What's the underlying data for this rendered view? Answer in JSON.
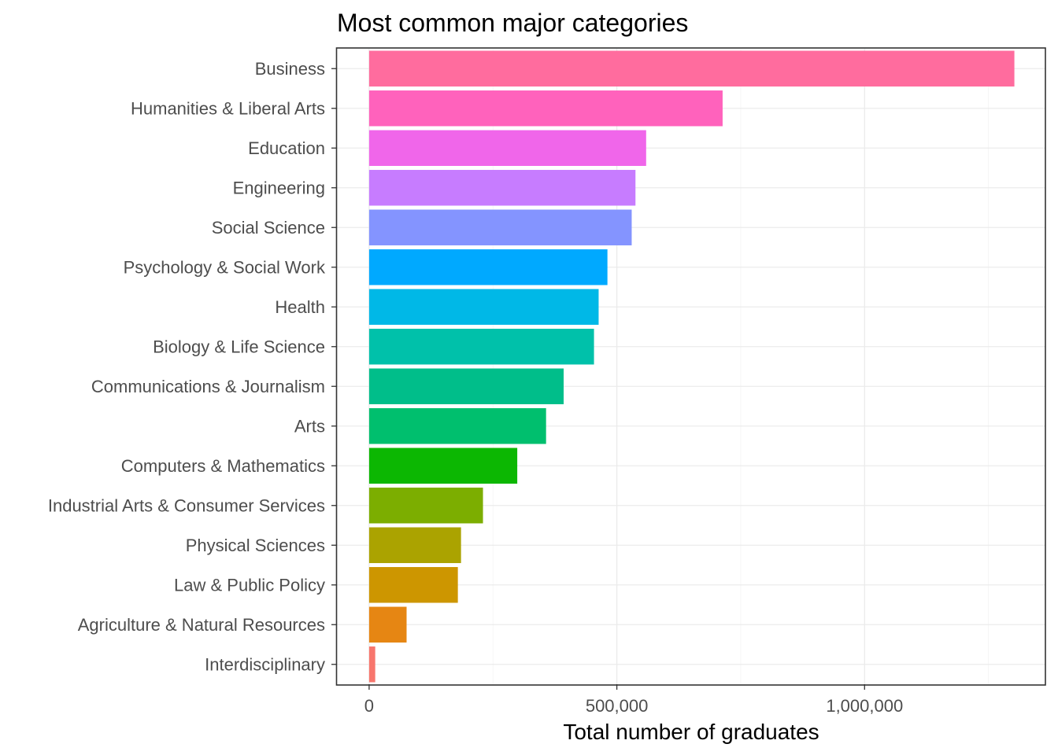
{
  "chart_data": {
    "type": "bar",
    "orientation": "horizontal",
    "title": "Most common major categories",
    "xlabel": "Total number of graduates",
    "ylabel": "",
    "xlim": [
      -65000,
      1365000
    ],
    "x_ticks": [
      {
        "value": 0,
        "label": "0"
      },
      {
        "value": 500000,
        "label": "500,000"
      },
      {
        "value": 1000000,
        "label": "1,000,000"
      }
    ],
    "x_minor_ticks": [
      250000,
      750000,
      1250000
    ],
    "grid": true,
    "legend": "none",
    "categories": [
      "Business",
      "Humanities & Liberal Arts",
      "Education",
      "Engineering",
      "Social Science",
      "Psychology & Social Work",
      "Health",
      "Biology & Life Science",
      "Communications & Journalism",
      "Arts",
      "Computers & Mathematics",
      "Industrial Arts & Consumer Services",
      "Physical Sciences",
      "Law & Public Policy",
      "Agriculture & Natural Resources",
      "Interdisciplinary"
    ],
    "values": [
      1302376,
      713468,
      559129,
      537583,
      529966,
      481007,
      463230,
      453862,
      392601,
      357130,
      299008,
      229792,
      185479,
      179107,
      75620,
      12296
    ],
    "colors": [
      "#FF6C9E",
      "#FF62BC",
      "#F066EA",
      "#C77CFF",
      "#8494FF",
      "#00A9FF",
      "#00B8E7",
      "#00C1AA",
      "#00BE8A",
      "#00BF6E",
      "#0CB702",
      "#7CAE00",
      "#ABA300",
      "#CD9600",
      "#E68613",
      "#F8766D"
    ]
  }
}
